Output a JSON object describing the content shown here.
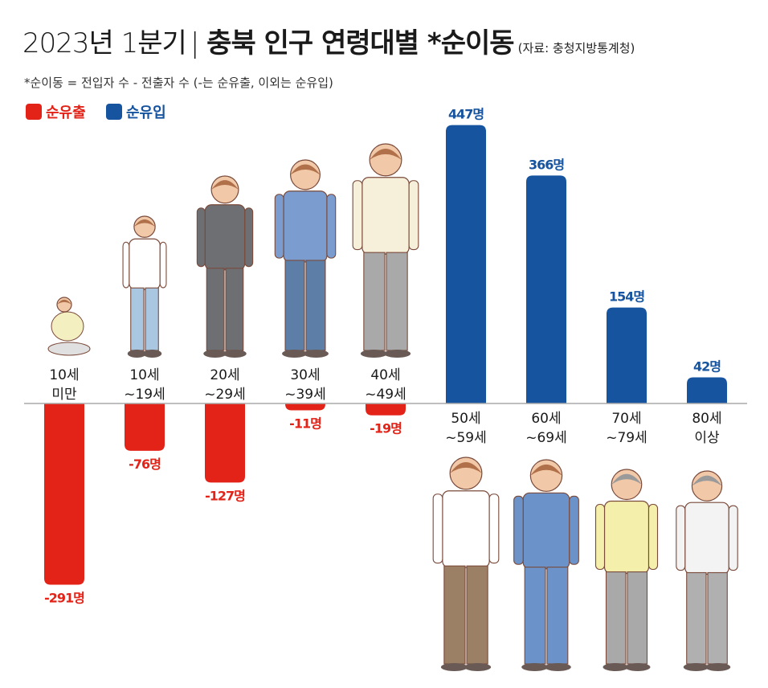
{
  "header": {
    "title_year": "2023년 1분기",
    "title_main": "충북 인구 연령대별 *순이동",
    "source": "(자료: 충청지방통계청)",
    "note": "*순이동 = 전입자 수 - 전출자 수 (-는 순유출, 이외는 순유입)"
  },
  "legend": {
    "outflow": "순유출",
    "inflow": "순유입"
  },
  "colors": {
    "outflow": "#e32318",
    "inflow": "#16549f",
    "axis": "#aaaaaa"
  },
  "chart_data": {
    "type": "bar",
    "title": "2023년 1분기 충북 인구 연령대별 *순이동",
    "unit": "명",
    "categories": [
      [
        "10세",
        "미만"
      ],
      [
        "10세",
        "~19세"
      ],
      [
        "20세",
        "~29세"
      ],
      [
        "30세",
        "~39세"
      ],
      [
        "40세",
        "~49세"
      ],
      [
        "50세",
        "~59세"
      ],
      [
        "60세",
        "~69세"
      ],
      [
        "70세",
        "~79세"
      ],
      [
        "80세",
        "이상"
      ]
    ],
    "values": [
      -291,
      -76,
      -127,
      -11,
      -19,
      447,
      366,
      154,
      42
    ],
    "value_labels": [
      "-291명",
      "-76명",
      "-127명",
      "-11명",
      "-19명",
      "447명",
      "366명",
      "154명",
      "42명"
    ]
  }
}
